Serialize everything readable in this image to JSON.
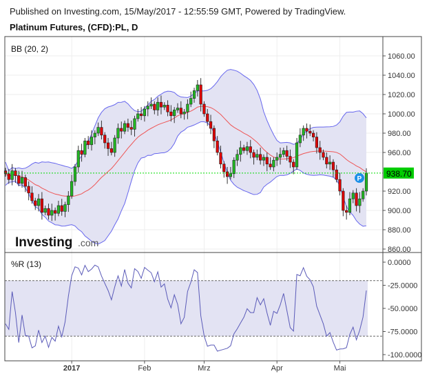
{
  "header": {
    "published": "Published on Investing.com, 15/May/2017 - 12:55:59 GMT, Powered by TradingView.",
    "title": "Platinum Futures, (CFD):PL, D"
  },
  "logo": {
    "brand": "Investing",
    ".com": ".com"
  },
  "colors": {
    "up": "#22b822",
    "down": "#e00000",
    "band_fill": "#e3e3f3",
    "band_line": "#6666ee",
    "basis": "#ee5555",
    "wr_line": "#5a5ab8",
    "last_price": "#00dd00"
  },
  "chart_data": [
    {
      "type": "candlestick",
      "indicator": "BB (20, 2)",
      "ylim": [
        860,
        1060
      ],
      "y_ticks": [
        "1060.00",
        "1040.00",
        "1020.00",
        "1000.00",
        "980.00",
        "960.00",
        "920.00",
        "900.00",
        "880.00",
        "860.00"
      ],
      "y_tick_values": [
        1060,
        1040,
        1020,
        1000,
        980,
        960,
        920,
        900,
        880,
        860
      ],
      "last_price": 938.7,
      "last_price_label": "938.70",
      "marker": "P",
      "close": [
        938,
        932,
        941,
        936,
        928,
        934,
        925,
        918,
        910,
        905,
        912,
        898,
        902,
        895,
        900,
        897,
        905,
        899,
        906,
        915,
        930,
        945,
        962,
        958,
        972,
        968,
        976,
        980,
        986,
        978,
        970,
        964,
        960,
        975,
        985,
        982,
        990,
        986,
        984,
        995,
        1000,
        998,
        1005,
        1008,
        1010,
        1004,
        1012,
        1007,
        1009,
        1002,
        998,
        1004,
        1006,
        1000,
        1002,
        1010,
        1016,
        1024,
        1030,
        1010,
        1000,
        992,
        985,
        972,
        960,
        948,
        940,
        935,
        938,
        952,
        958,
        965,
        962,
        966,
        960,
        955,
        958,
        952,
        955,
        948,
        945,
        952,
        955,
        958,
        962,
        956,
        950,
        945,
        970,
        978,
        985,
        982,
        980,
        976,
        965,
        960,
        955,
        948,
        950,
        942,
        932,
        920,
        900,
        898,
        912,
        918,
        905,
        912,
        920,
        938.7
      ]
    },
    {
      "type": "line",
      "indicator": "%R (13)",
      "ylim": [
        -100,
        0
      ],
      "y_ticks": [
        "0.0000",
        "-25.0000",
        "-50.0000",
        "-75.0000",
        "-100.0000"
      ],
      "y_tick_values": [
        0,
        -25,
        -50,
        -75,
        -100
      ],
      "bands": [
        -20,
        -80
      ]
    }
  ],
  "x_axis": {
    "labels": [
      "2017",
      "Feb",
      "Mrz",
      "Apr",
      "Mai"
    ],
    "bar_index": [
      20,
      42,
      60,
      82,
      101
    ]
  }
}
